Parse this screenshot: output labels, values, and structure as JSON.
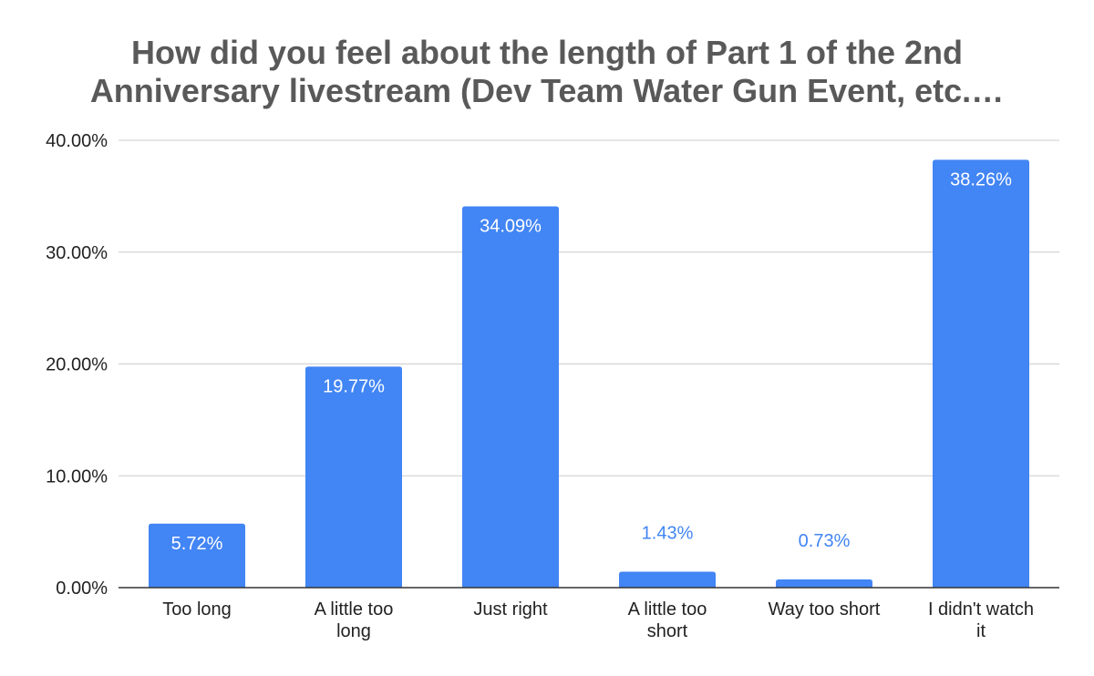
{
  "chart_data": {
    "type": "bar",
    "title_lines": [
      "How did you feel about the length of Part 1 of the 2nd",
      "Anniversary livestream (Dev Team Water Gun Event, etc.…"
    ],
    "categories": [
      [
        "Too long"
      ],
      [
        "A little too",
        "long"
      ],
      [
        "Just right"
      ],
      [
        "A little too",
        "short"
      ],
      [
        "Way too short"
      ],
      [
        "I didn't watch",
        "it"
      ]
    ],
    "values": [
      5.72,
      19.77,
      34.09,
      1.43,
      0.73,
      38.26
    ],
    "data_labels": [
      "5.72%",
      "19.77%",
      "34.09%",
      "1.43%",
      "0.73%",
      "38.26%"
    ],
    "ylim": [
      0,
      40
    ],
    "yticks": [
      0,
      10,
      20,
      30,
      40
    ],
    "ytick_labels": [
      "0.00%",
      "10.00%",
      "20.00%",
      "30.00%",
      "40.00%"
    ],
    "grid": true,
    "legend": "none",
    "bar_color": "#4285f4",
    "grid_color": "#cccccc",
    "axis_color": "#333333"
  }
}
